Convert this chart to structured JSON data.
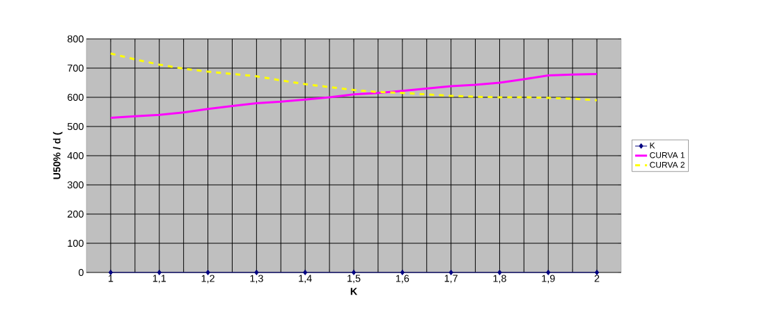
{
  "chart_data": {
    "type": "line",
    "xlabel": "K",
    "ylabel": "U50% / d (",
    "xlim": [
      0.95,
      2.05
    ],
    "ylim": [
      0,
      800
    ],
    "xticks": [
      {
        "value": 1,
        "label": "1"
      },
      {
        "value": 1.05,
        "label": null
      },
      {
        "value": 1.1,
        "label": "1,1"
      },
      {
        "value": 1.15,
        "label": null
      },
      {
        "value": 1.2,
        "label": "1,2"
      },
      {
        "value": 1.25,
        "label": null
      },
      {
        "value": 1.3,
        "label": "1,3"
      },
      {
        "value": 1.35,
        "label": null
      },
      {
        "value": 1.4,
        "label": "1,4"
      },
      {
        "value": 1.45,
        "label": null
      },
      {
        "value": 1.5,
        "label": "1,5"
      },
      {
        "value": 1.55,
        "label": null
      },
      {
        "value": 1.6,
        "label": "1,6"
      },
      {
        "value": 1.65,
        "label": null
      },
      {
        "value": 1.7,
        "label": "1,7"
      },
      {
        "value": 1.75,
        "label": null
      },
      {
        "value": 1.8,
        "label": "1,8"
      },
      {
        "value": 1.85,
        "label": null
      },
      {
        "value": 1.9,
        "label": "1,9"
      },
      {
        "value": 1.95,
        "label": null
      },
      {
        "value": 2,
        "label": "2"
      }
    ],
    "yticks": [
      0,
      100,
      200,
      300,
      400,
      500,
      600,
      700,
      800
    ],
    "grid": true,
    "legend": "right",
    "series": [
      {
        "name": "K",
        "color": "#000080",
        "marker": "diamond",
        "line_style": "solid",
        "x": [
          1,
          1.1,
          1.2,
          1.3,
          1.4,
          1.5,
          1.6,
          1.7,
          1.8,
          1.9,
          2
        ],
        "values": [
          0,
          0,
          0,
          0,
          0,
          0,
          0,
          0,
          0,
          0,
          0
        ]
      },
      {
        "name": "CURVA 1",
        "color": "#ff00ff",
        "marker": "none",
        "line_style": "solid",
        "x": [
          1,
          1.05,
          1.1,
          1.15,
          1.2,
          1.25,
          1.3,
          1.35,
          1.4,
          1.45,
          1.5,
          1.55,
          1.6,
          1.65,
          1.7,
          1.75,
          1.8,
          1.85,
          1.9,
          1.95,
          2
        ],
        "values": [
          530,
          535,
          540,
          548,
          560,
          570,
          580,
          585,
          592,
          600,
          610,
          615,
          622,
          630,
          638,
          643,
          650,
          662,
          675,
          678,
          680
        ]
      },
      {
        "name": "CURVA 2",
        "color": "#ffff00",
        "marker": "none",
        "line_style": "dashed",
        "x": [
          1,
          1.05,
          1.1,
          1.15,
          1.2,
          1.25,
          1.3,
          1.35,
          1.4,
          1.45,
          1.5,
          1.55,
          1.6,
          1.65,
          1.7,
          1.75,
          1.8,
          1.85,
          1.9,
          1.95,
          2
        ],
        "values": [
          750,
          730,
          712,
          698,
          688,
          680,
          672,
          658,
          645,
          635,
          625,
          618,
          615,
          610,
          605,
          602,
          600,
          600,
          598,
          595,
          590
        ]
      }
    ]
  }
}
